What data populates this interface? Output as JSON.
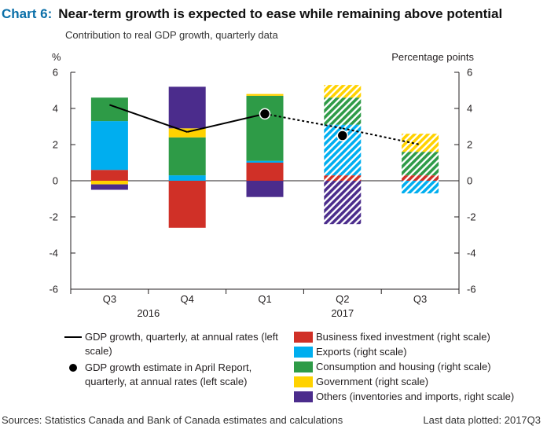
{
  "header": {
    "chart_number": "Chart 6:",
    "title": "Near-term growth is expected to ease while remaining above potential",
    "subtitle": "Contribution to real GDP growth, quarterly data"
  },
  "legend": {
    "line": "GDP growth, quarterly, at annual rates (left scale)",
    "dot": "GDP growth estimate in April Report, quarterly, at annual rates (left scale)"
  },
  "footer": {
    "sources": "Sources: Statistics Canada and Bank of Canada estimates and calculations",
    "last_data": "Last data plotted: 2017Q3"
  },
  "chart_data": {
    "type": "bar",
    "stacked": true,
    "categories": [
      "Q3",
      "Q4",
      "Q1",
      "Q2",
      "Q3"
    ],
    "year_labels": [
      {
        "label": "2016",
        "category_index": 0.5
      },
      {
        "label": "2017",
        "category_index": 3
      }
    ],
    "ylabel_left": "%",
    "ylabel_right": "Percentage points",
    "ylim": [
      -6,
      6
    ],
    "yticks": [
      -6,
      -4,
      -2,
      0,
      2,
      4,
      6
    ],
    "projection_start_index": 3,
    "series": [
      {
        "name": "Business fixed investment (right scale)",
        "color": "#d03027",
        "values": [
          0.6,
          -2.6,
          1.0,
          0.3,
          0.3
        ]
      },
      {
        "name": "Exports (right scale)",
        "color": "#00aeef",
        "values": [
          2.7,
          0.3,
          0.1,
          2.8,
          -0.7
        ]
      },
      {
        "name": "Consumption and housing (right scale)",
        "color": "#2e9b47",
        "values": [
          1.3,
          2.1,
          3.6,
          1.5,
          1.3
        ]
      },
      {
        "name": "Government (right scale)",
        "color": "#ffd200",
        "values": [
          -0.2,
          0.5,
          0.1,
          0.7,
          1.0
        ]
      },
      {
        "name": "Others (inventories and imports, right scale)",
        "color": "#4b2c8c",
        "values": [
          -0.3,
          2.3,
          -0.9,
          -2.4,
          0.0
        ]
      }
    ],
    "line": {
      "name": "GDP growth, quarterly, at annual rates (left scale)",
      "values": [
        4.2,
        2.7,
        3.7,
        2.9,
        2.0
      ]
    },
    "dots": {
      "name": "GDP growth estimate in April Report, quarterly, at annual rates (left scale)",
      "points": [
        {
          "index": 2,
          "value": 3.7
        },
        {
          "index": 3,
          "value": 2.5
        }
      ]
    }
  }
}
